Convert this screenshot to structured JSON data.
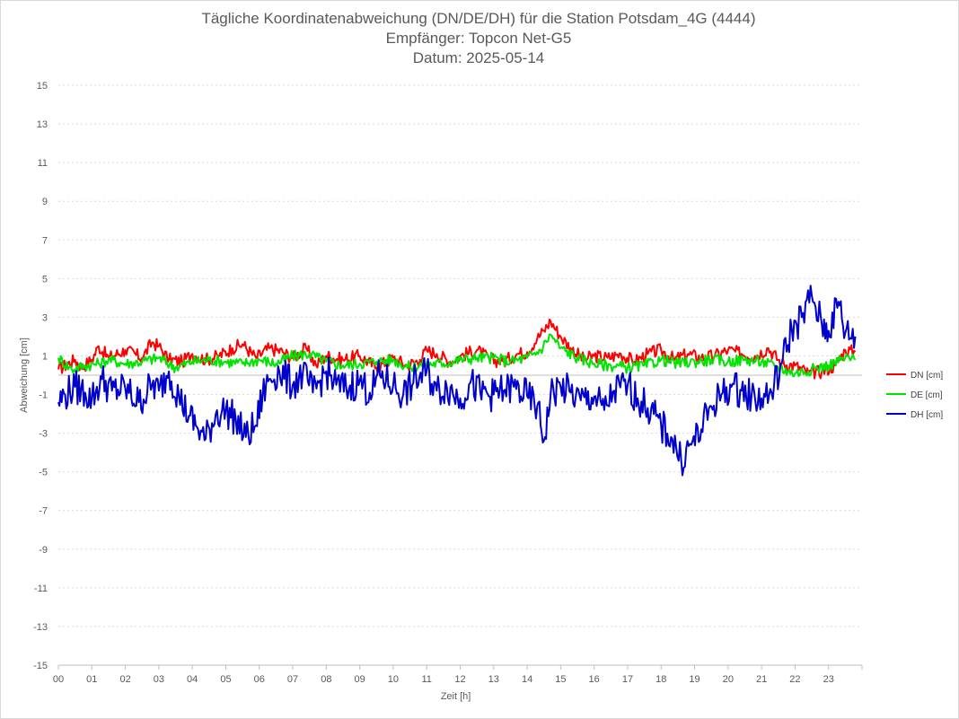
{
  "chart_data": {
    "type": "line",
    "title": "Tägliche Koordinatenabweichung (DN/DE/DH) für die Station Potsdam_4G (4444)",
    "subtitle": "Empfänger: Topcon Net-G5",
    "subtitle2": "Datum: 2025-05-14",
    "xlabel": "Zeit [h]",
    "ylabel": "Abweichung [cm]",
    "xlim": [
      0,
      24
    ],
    "ylim": [
      -15,
      15
    ],
    "x_ticks": [
      "00",
      "01",
      "02",
      "03",
      "04",
      "05",
      "06",
      "07",
      "08",
      "09",
      "10",
      "11",
      "12",
      "13",
      "14",
      "15",
      "16",
      "17",
      "18",
      "19",
      "20",
      "21",
      "22",
      "23"
    ],
    "y_ticks": [
      15,
      13,
      11,
      9,
      7,
      5,
      3,
      1,
      -1,
      -3,
      -5,
      -7,
      -9,
      -11,
      -13,
      -15
    ],
    "grid": true,
    "legend_position": "right",
    "series": [
      {
        "name": "DN [cm]",
        "color": "#ff0000",
        "points": [
          [
            0.0,
            0.3
          ],
          [
            0.5,
            0.8
          ],
          [
            0.7,
            0.4
          ],
          [
            1.0,
            0.8
          ],
          [
            1.2,
            1.5
          ],
          [
            1.5,
            0.9
          ],
          [
            2.0,
            1.3
          ],
          [
            2.5,
            0.9
          ],
          [
            2.8,
            1.7
          ],
          [
            3.0,
            1.5
          ],
          [
            3.3,
            0.8
          ],
          [
            3.7,
            0.7
          ],
          [
            4.0,
            1.1
          ],
          [
            4.4,
            0.8
          ],
          [
            4.8,
            1.0
          ],
          [
            5.2,
            1.4
          ],
          [
            5.5,
            1.6
          ],
          [
            5.9,
            0.9
          ],
          [
            6.3,
            1.4
          ],
          [
            6.7,
            1.2
          ],
          [
            7.0,
            0.9
          ],
          [
            7.4,
            1.4
          ],
          [
            7.7,
            0.5
          ],
          [
            8.0,
            1.0
          ],
          [
            8.5,
            0.8
          ],
          [
            9.0,
            1.0
          ],
          [
            9.5,
            0.4
          ],
          [
            10.0,
            0.9
          ],
          [
            10.4,
            0.5
          ],
          [
            10.8,
            0.8
          ],
          [
            11.0,
            1.3
          ],
          [
            11.3,
            1.1
          ],
          [
            11.7,
            0.7
          ],
          [
            12.0,
            1.0
          ],
          [
            12.5,
            1.3
          ],
          [
            12.9,
            0.8
          ],
          [
            13.3,
            0.7
          ],
          [
            13.7,
            1.1
          ],
          [
            14.0,
            1.2
          ],
          [
            14.3,
            1.9
          ],
          [
            14.5,
            2.3
          ],
          [
            14.7,
            2.8
          ],
          [
            15.0,
            2.0
          ],
          [
            15.3,
            1.4
          ],
          [
            15.7,
            0.8
          ],
          [
            16.0,
            1.0
          ],
          [
            16.4,
            0.9
          ],
          [
            16.8,
            1.1
          ],
          [
            17.2,
            0.7
          ],
          [
            17.6,
            1.1
          ],
          [
            18.0,
            1.3
          ],
          [
            18.4,
            0.8
          ],
          [
            18.8,
            1.1
          ],
          [
            19.2,
            0.9
          ],
          [
            19.6,
            1.0
          ],
          [
            20.0,
            1.3
          ],
          [
            20.4,
            1.1
          ],
          [
            20.8,
            1.0
          ],
          [
            21.2,
            1.4
          ],
          [
            21.6,
            0.6
          ],
          [
            22.0,
            0.5
          ],
          [
            22.4,
            0.1
          ],
          [
            22.8,
            0.2
          ],
          [
            23.2,
            0.5
          ],
          [
            23.5,
            1.3
          ],
          [
            23.8,
            1.2
          ]
        ]
      },
      {
        "name": "DE [cm]",
        "color": "#00e400",
        "points": [
          [
            0.0,
            0.9
          ],
          [
            0.4,
            0.3
          ],
          [
            0.8,
            0.5
          ],
          [
            1.2,
            0.6
          ],
          [
            1.5,
            0.8
          ],
          [
            2.0,
            0.6
          ],
          [
            2.5,
            0.7
          ],
          [
            3.0,
            0.9
          ],
          [
            3.5,
            0.4
          ],
          [
            4.0,
            0.7
          ],
          [
            4.5,
            0.8
          ],
          [
            5.0,
            0.7
          ],
          [
            5.5,
            0.6
          ],
          [
            6.0,
            0.8
          ],
          [
            6.5,
            0.6
          ],
          [
            7.0,
            1.0
          ],
          [
            7.5,
            1.1
          ],
          [
            8.0,
            0.7
          ],
          [
            8.5,
            0.5
          ],
          [
            9.0,
            0.6
          ],
          [
            9.5,
            0.7
          ],
          [
            10.0,
            0.8
          ],
          [
            10.5,
            0.4
          ],
          [
            11.0,
            0.6
          ],
          [
            11.5,
            0.6
          ],
          [
            12.0,
            0.8
          ],
          [
            12.5,
            0.9
          ],
          [
            13.0,
            0.9
          ],
          [
            13.5,
            0.7
          ],
          [
            14.0,
            0.9
          ],
          [
            14.4,
            1.3
          ],
          [
            14.7,
            2.1
          ],
          [
            15.0,
            1.4
          ],
          [
            15.5,
            0.9
          ],
          [
            16.0,
            0.6
          ],
          [
            16.5,
            0.5
          ],
          [
            17.0,
            0.4
          ],
          [
            17.5,
            0.5
          ],
          [
            18.0,
            0.8
          ],
          [
            18.5,
            0.6
          ],
          [
            19.0,
            0.7
          ],
          [
            19.5,
            0.8
          ],
          [
            20.0,
            0.7
          ],
          [
            20.5,
            0.8
          ],
          [
            21.0,
            0.7
          ],
          [
            21.5,
            0.4
          ],
          [
            22.0,
            0.1
          ],
          [
            22.5,
            0.3
          ],
          [
            23.0,
            0.5
          ],
          [
            23.5,
            0.9
          ],
          [
            23.8,
            0.8
          ]
        ]
      },
      {
        "name": "DH [cm]",
        "color": "#0000cc",
        "points": [
          [
            0.0,
            -1.4
          ],
          [
            0.2,
            -1.0
          ],
          [
            0.5,
            -0.6
          ],
          [
            0.8,
            -0.9
          ],
          [
            1.0,
            -1.2
          ],
          [
            1.3,
            -0.2
          ],
          [
            1.6,
            -0.8
          ],
          [
            2.0,
            -0.7
          ],
          [
            2.4,
            -1.4
          ],
          [
            2.8,
            -0.5
          ],
          [
            3.0,
            -0.8
          ],
          [
            3.3,
            0.2
          ],
          [
            3.6,
            -1.1
          ],
          [
            3.9,
            -2.1
          ],
          [
            4.1,
            -2.6
          ],
          [
            4.4,
            -3.3
          ],
          [
            4.7,
            -2.0
          ],
          [
            5.0,
            -1.8
          ],
          [
            5.3,
            -2.3
          ],
          [
            5.6,
            -3.2
          ],
          [
            5.9,
            -2.6
          ],
          [
            6.1,
            -1.0
          ],
          [
            6.3,
            -0.2
          ],
          [
            6.6,
            0.2
          ],
          [
            7.0,
            -0.5
          ],
          [
            7.3,
            0.1
          ],
          [
            7.6,
            -0.9
          ],
          [
            8.0,
            0.2
          ],
          [
            8.3,
            -0.5
          ],
          [
            8.6,
            -0.7
          ],
          [
            9.0,
            -0.3
          ],
          [
            9.3,
            -0.9
          ],
          [
            9.6,
            0.0
          ],
          [
            10.0,
            -0.5
          ],
          [
            10.3,
            -1.0
          ],
          [
            10.6,
            -0.4
          ],
          [
            11.0,
            0.2
          ],
          [
            11.3,
            -0.8
          ],
          [
            11.6,
            -0.6
          ],
          [
            12.0,
            -1.2
          ],
          [
            12.3,
            -0.4
          ],
          [
            12.6,
            -0.9
          ],
          [
            13.0,
            -1.0
          ],
          [
            13.3,
            -0.8
          ],
          [
            13.6,
            -0.6
          ],
          [
            14.0,
            -1.1
          ],
          [
            14.3,
            -1.6
          ],
          [
            14.5,
            -3.4
          ],
          [
            14.7,
            -1.0
          ],
          [
            15.0,
            -0.6
          ],
          [
            15.3,
            -0.9
          ],
          [
            15.6,
            -1.3
          ],
          [
            16.0,
            -1.1
          ],
          [
            16.3,
            -1.8
          ],
          [
            16.6,
            -0.8
          ],
          [
            17.0,
            -0.5
          ],
          [
            17.3,
            -1.2
          ],
          [
            17.6,
            -1.7
          ],
          [
            18.0,
            -2.6
          ],
          [
            18.3,
            -3.2
          ],
          [
            18.6,
            -4.4
          ],
          [
            18.9,
            -3.6
          ],
          [
            19.2,
            -2.8
          ],
          [
            19.5,
            -1.6
          ],
          [
            19.8,
            -1.0
          ],
          [
            20.1,
            -0.6
          ],
          [
            20.4,
            -0.8
          ],
          [
            20.7,
            -1.1
          ],
          [
            21.0,
            -1.2
          ],
          [
            21.3,
            -0.9
          ],
          [
            21.6,
            0.6
          ],
          [
            21.9,
            2.4
          ],
          [
            22.2,
            3.0
          ],
          [
            22.5,
            4.1
          ],
          [
            22.8,
            2.6
          ],
          [
            23.0,
            2.3
          ],
          [
            23.3,
            3.8
          ],
          [
            23.5,
            2.2
          ],
          [
            23.8,
            2.0
          ]
        ]
      }
    ]
  }
}
